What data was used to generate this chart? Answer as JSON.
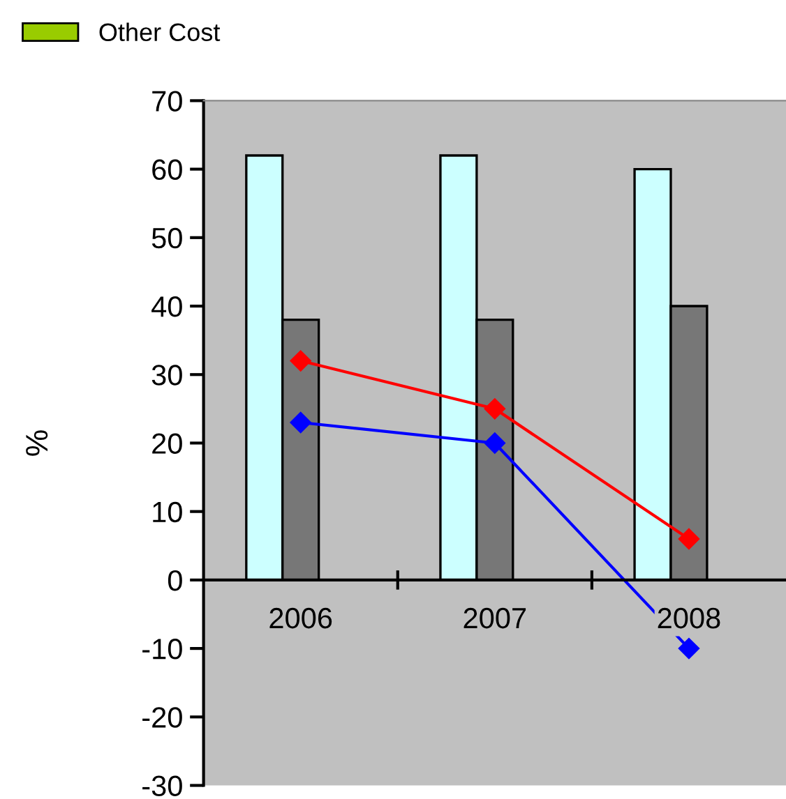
{
  "chart_data": {
    "type": "bar",
    "ylabel": "%",
    "categories": [
      "2006",
      "2007",
      "2008"
    ],
    "series": [
      {
        "color": "#ccffff",
        "values": [
          62,
          62,
          60
        ]
      },
      {
        "color": "#777777",
        "values": [
          38,
          38,
          40
        ]
      },
      {
        "type": "line",
        "color": "#ff0000",
        "values": [
          32,
          25,
          6
        ]
      },
      {
        "type": "line",
        "color": "#0000ff",
        "values": [
          23,
          20,
          -10
        ]
      },
      {
        "name": "Other Cost",
        "color": "#99cc00",
        "values": [
          null,
          null,
          null
        ]
      }
    ],
    "ylim": [
      -30,
      70
    ],
    "yticks": [
      -30,
      -20,
      -10,
      0,
      10,
      20,
      30,
      40,
      50,
      60,
      70
    ],
    "grid": false,
    "legend": "top left",
    "marker": "diamond",
    "line_style": "solid"
  }
}
